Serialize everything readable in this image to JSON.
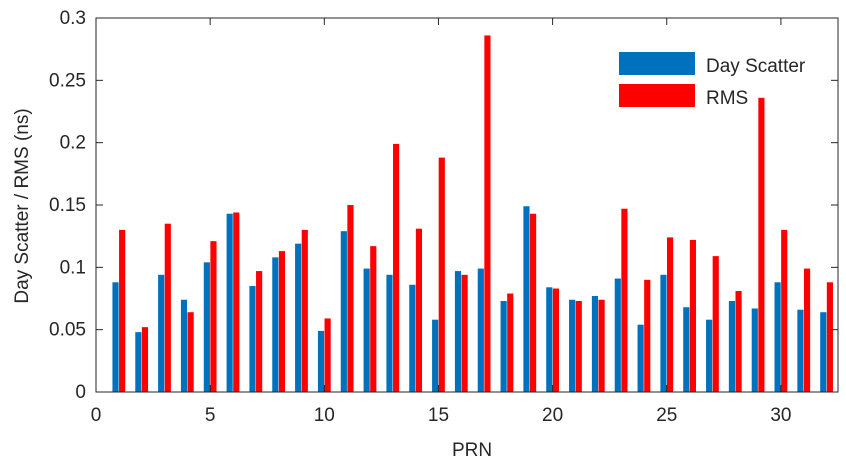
{
  "chart_data": {
    "type": "bar",
    "title": "",
    "xlabel": "PRN",
    "ylabel": "Day Scatter / RMS (ns)",
    "xlim": [
      0,
      32.5
    ],
    "ylim": [
      0,
      0.3
    ],
    "xticks": [
      0,
      5,
      10,
      15,
      20,
      25,
      30
    ],
    "xtick_labels": [
      "0",
      "5",
      "10",
      "15",
      "20",
      "25",
      "30"
    ],
    "yticks": [
      0,
      0.05,
      0.1,
      0.15,
      0.2,
      0.25,
      0.3
    ],
    "ytick_labels": [
      "0",
      "0.05",
      "0.1",
      "0.15",
      "0.2",
      "0.25",
      "0.3"
    ],
    "grid": false,
    "legend_position": "top-right",
    "x": [
      1,
      2,
      3,
      4,
      5,
      6,
      7,
      8,
      9,
      10,
      11,
      12,
      13,
      14,
      15,
      16,
      17,
      18,
      19,
      20,
      21,
      22,
      23,
      24,
      25,
      26,
      27,
      28,
      29,
      30,
      31,
      32
    ],
    "series": [
      {
        "name": "Day Scatter",
        "color": "#0072bd",
        "values": [
          0.088,
          0.048,
          0.094,
          0.074,
          0.104,
          0.143,
          0.085,
          0.108,
          0.119,
          0.049,
          0.129,
          0.099,
          0.094,
          0.086,
          0.058,
          0.097,
          0.099,
          0.073,
          0.149,
          0.084,
          0.074,
          0.077,
          0.091,
          0.054,
          0.094,
          0.068,
          0.058,
          0.073,
          0.067,
          0.088,
          0.066,
          0.064
        ]
      },
      {
        "name": "RMS",
        "color": "#ff0000",
        "values": [
          0.13,
          0.052,
          0.135,
          0.064,
          0.121,
          0.144,
          0.097,
          0.113,
          0.13,
          0.059,
          0.15,
          0.117,
          0.199,
          0.131,
          0.188,
          0.094,
          0.286,
          0.079,
          0.143,
          0.083,
          0.073,
          0.074,
          0.147,
          0.09,
          0.124,
          0.122,
          0.109,
          0.081,
          0.236,
          0.13,
          0.099,
          0.088
        ]
      }
    ]
  }
}
